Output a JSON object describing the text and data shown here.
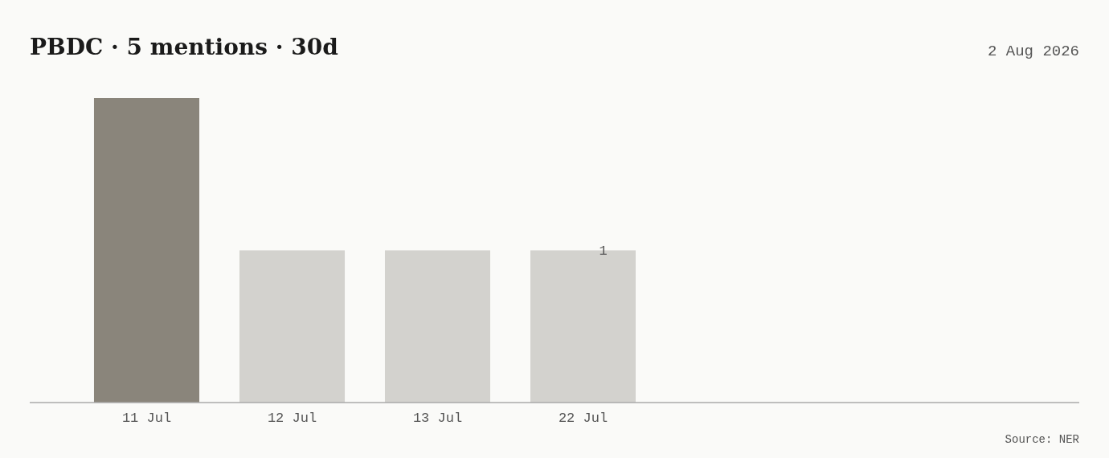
{
  "chart_data": {
    "type": "bar",
    "title": "PBDC · 5 mentions · 30d",
    "subtitle": "2 Aug 2026",
    "categories": [
      "11 Jul",
      "12 Jul",
      "13 Jul",
      "22 Jul"
    ],
    "values": [
      2,
      1,
      1,
      1
    ],
    "colors": [
      "#8a857b",
      "#d3d2ce",
      "#d3d2ce",
      "#d3d2ce"
    ],
    "value_labels": [
      null,
      null,
      null,
      "1"
    ],
    "ylim": [
      0,
      2
    ],
    "tick_labels": "x",
    "grid": false,
    "annotations": [
      "Source: NER"
    ]
  }
}
